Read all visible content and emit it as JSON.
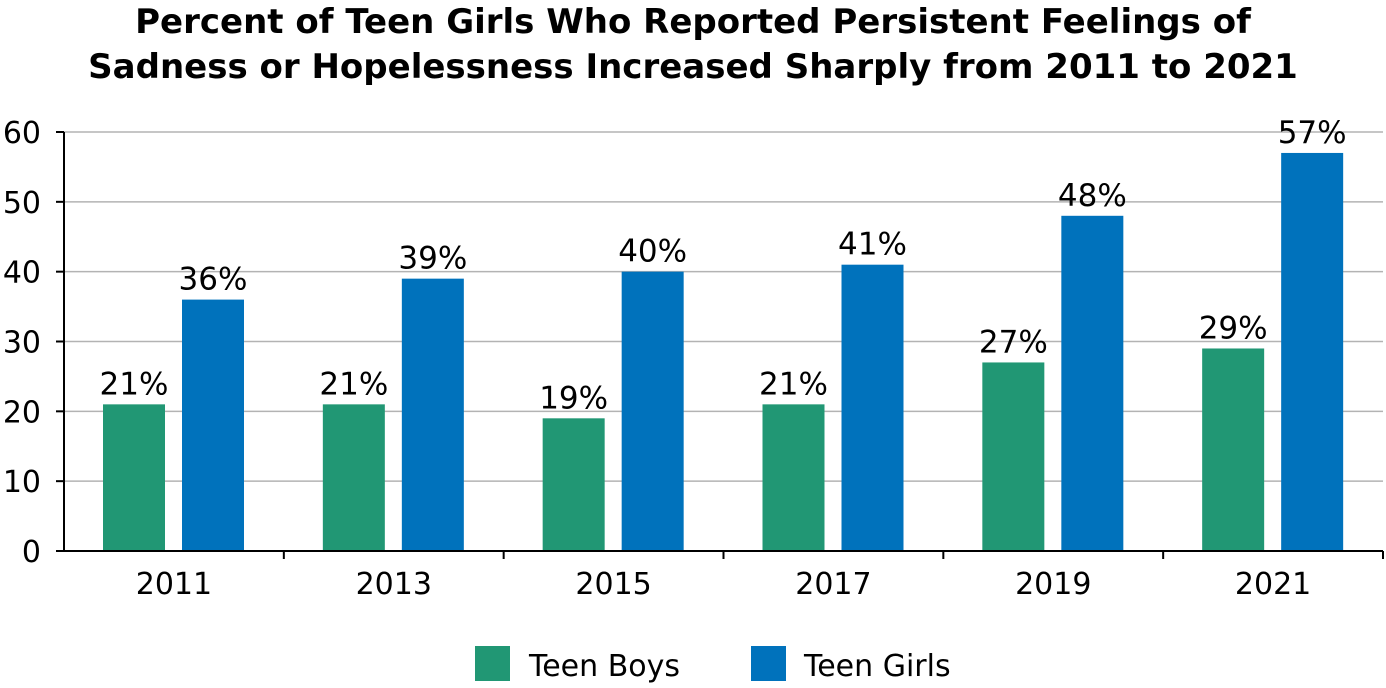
{
  "chart_data": {
    "type": "bar",
    "title_line1": "Percent of Teen Girls Who Reported Persistent Feelings of",
    "title_line2": "Sadness or Hopelessness Increased Sharply from 2011 to 2021",
    "categories": [
      "2011",
      "2013",
      "2015",
      "2017",
      "2019",
      "2021"
    ],
    "series": [
      {
        "name": "Teen Boys",
        "color": "#219774",
        "values": [
          21,
          21,
          19,
          21,
          27,
          29
        ],
        "labels": [
          "21%",
          "21%",
          "19%",
          "21%",
          "27%",
          "29%"
        ]
      },
      {
        "name": "Teen Girls",
        "color": "#0072BC",
        "values": [
          36,
          39,
          40,
          41,
          48,
          57
        ],
        "labels": [
          "36%",
          "39%",
          "40%",
          "41%",
          "48%",
          "57%"
        ]
      }
    ],
    "ylim": [
      0,
      60
    ],
    "yticks": [
      "0",
      "10",
      "20",
      "30",
      "40",
      "50",
      "60"
    ],
    "grid": true,
    "legend_position": "bottom"
  }
}
